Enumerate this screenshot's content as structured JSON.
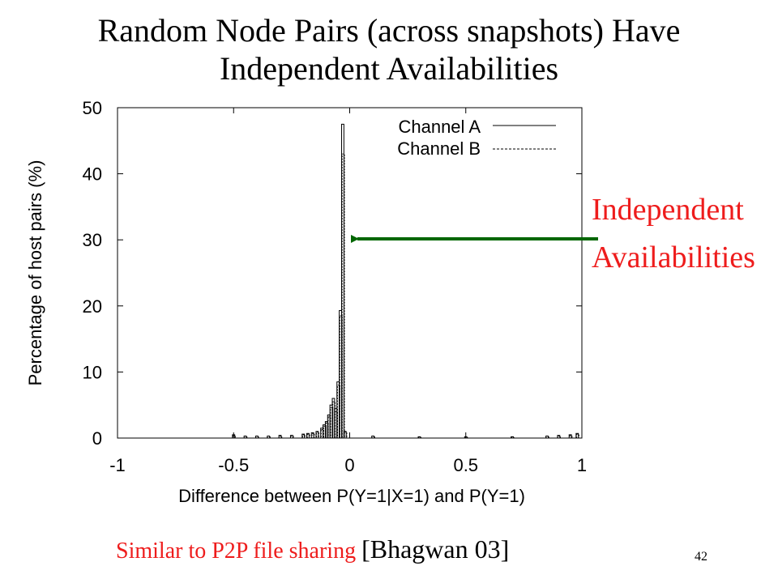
{
  "slide": {
    "title_line1": "Random Node Pairs (across snapshots) Have",
    "title_line2": "Independent  Availabilities",
    "callout_line1": "Independent",
    "callout_line2": "Availabilities",
    "footnote_red": "Similar to P2P file sharing",
    "footnote_black": "[Bhagwan 03]",
    "page_number": "42",
    "accent_red": "#ee1c1c",
    "arrow_green": "#006600"
  },
  "chart_data": {
    "type": "bar",
    "title": "",
    "xlabel": "Difference between P(Y=1|X=1) and P(Y=1)",
    "ylabel": "Percentage of host pairs (%)",
    "xlim": [
      -1,
      1
    ],
    "ylim": [
      0,
      50
    ],
    "xticks": [
      "-1",
      "-0.5",
      "0",
      "0.5",
      "1"
    ],
    "yticks": [
      "0",
      "10",
      "20",
      "30",
      "40",
      "50"
    ],
    "legend_position": "top-right",
    "grid": false,
    "bin_width": 0.01,
    "series": [
      {
        "name": "Channel A",
        "line_style": "solid",
        "x": [
          -0.5,
          -0.45,
          -0.4,
          -0.35,
          -0.3,
          -0.25,
          -0.2,
          -0.18,
          -0.16,
          -0.14,
          -0.12,
          -0.11,
          -0.1,
          -0.09,
          -0.08,
          -0.07,
          -0.06,
          -0.05,
          -0.04,
          -0.03,
          -0.02,
          0.1,
          0.3,
          0.5,
          0.7,
          0.85,
          0.9,
          0.95,
          0.98
        ],
        "values": [
          0.5,
          0.3,
          0.3,
          0.3,
          0.4,
          0.4,
          0.6,
          0.7,
          0.8,
          1.0,
          1.5,
          2.0,
          2.5,
          3.5,
          5.0,
          6.0,
          4.5,
          8.5,
          19.3,
          47.5,
          1.0,
          0.3,
          0.2,
          0.2,
          0.2,
          0.3,
          0.4,
          0.5,
          0.7
        ]
      },
      {
        "name": "Channel B",
        "line_style": "dashed",
        "x": [
          -0.5,
          -0.45,
          -0.4,
          -0.35,
          -0.3,
          -0.25,
          -0.2,
          -0.18,
          -0.16,
          -0.14,
          -0.12,
          -0.11,
          -0.1,
          -0.09,
          -0.08,
          -0.07,
          -0.06,
          -0.05,
          -0.04,
          -0.03,
          -0.02,
          0.1,
          0.3,
          0.5,
          0.7,
          0.85,
          0.9,
          0.95,
          0.98
        ],
        "values": [
          0.4,
          0.3,
          0.3,
          0.3,
          0.3,
          0.4,
          0.5,
          0.6,
          0.7,
          0.9,
          1.3,
          1.8,
          2.3,
          3.2,
          4.6,
          5.5,
          4.0,
          8.0,
          18.5,
          43.0,
          0.9,
          0.3,
          0.2,
          0.2,
          0.2,
          0.3,
          0.3,
          0.4,
          0.6
        ]
      }
    ]
  }
}
